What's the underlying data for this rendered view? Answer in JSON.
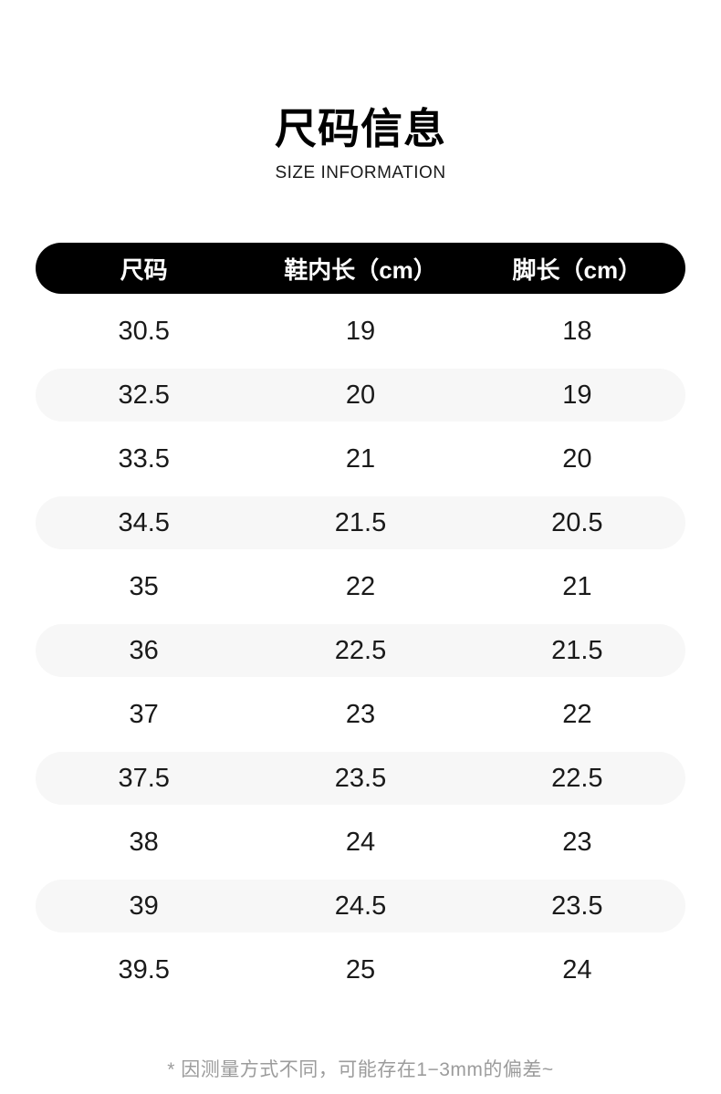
{
  "page": {
    "title": "尺码信息",
    "subtitle": "SIZE INFORMATION",
    "footnote": "* 因测量方式不同，可能存在1−3mm的偏差~"
  },
  "table": {
    "headers": [
      "尺码",
      "鞋内长（cm）",
      "脚长（cm）"
    ],
    "rows": [
      [
        "30.5",
        "19",
        "18"
      ],
      [
        "32.5",
        "20",
        "19"
      ],
      [
        "33.5",
        "21",
        "20"
      ],
      [
        "34.5",
        "21.5",
        "20.5"
      ],
      [
        "35",
        "22",
        "21"
      ],
      [
        "36",
        "22.5",
        "21.5"
      ],
      [
        "37",
        "23",
        "22"
      ],
      [
        "37.5",
        "23.5",
        "22.5"
      ],
      [
        "38",
        "24",
        "23"
      ],
      [
        "39",
        "24.5",
        "23.5"
      ],
      [
        "39.5",
        "25",
        "24"
      ]
    ]
  },
  "colors": {
    "header_bg": "#000000",
    "header_text": "#ffffff",
    "row_alt_bg": "#f7f7f7",
    "text": "#1a1a1a",
    "footnote_text": "#9c9c9c"
  },
  "chart_data": {
    "type": "table",
    "title": "尺码信息",
    "subtitle": "SIZE INFORMATION",
    "columns": [
      "尺码",
      "鞋内长（cm）",
      "脚长（cm）"
    ],
    "rows": [
      [
        30.5,
        19,
        18
      ],
      [
        32.5,
        20,
        19
      ],
      [
        33.5,
        21,
        20
      ],
      [
        34.5,
        21.5,
        20.5
      ],
      [
        35,
        22,
        21
      ],
      [
        36,
        22.5,
        21.5
      ],
      [
        37,
        23,
        22
      ],
      [
        37.5,
        23.5,
        22.5
      ],
      [
        38,
        24,
        23
      ],
      [
        39,
        24.5,
        23.5
      ],
      [
        39.5,
        25,
        24
      ]
    ],
    "footnote": "* 因测量方式不同，可能存在1−3mm的偏差~"
  }
}
